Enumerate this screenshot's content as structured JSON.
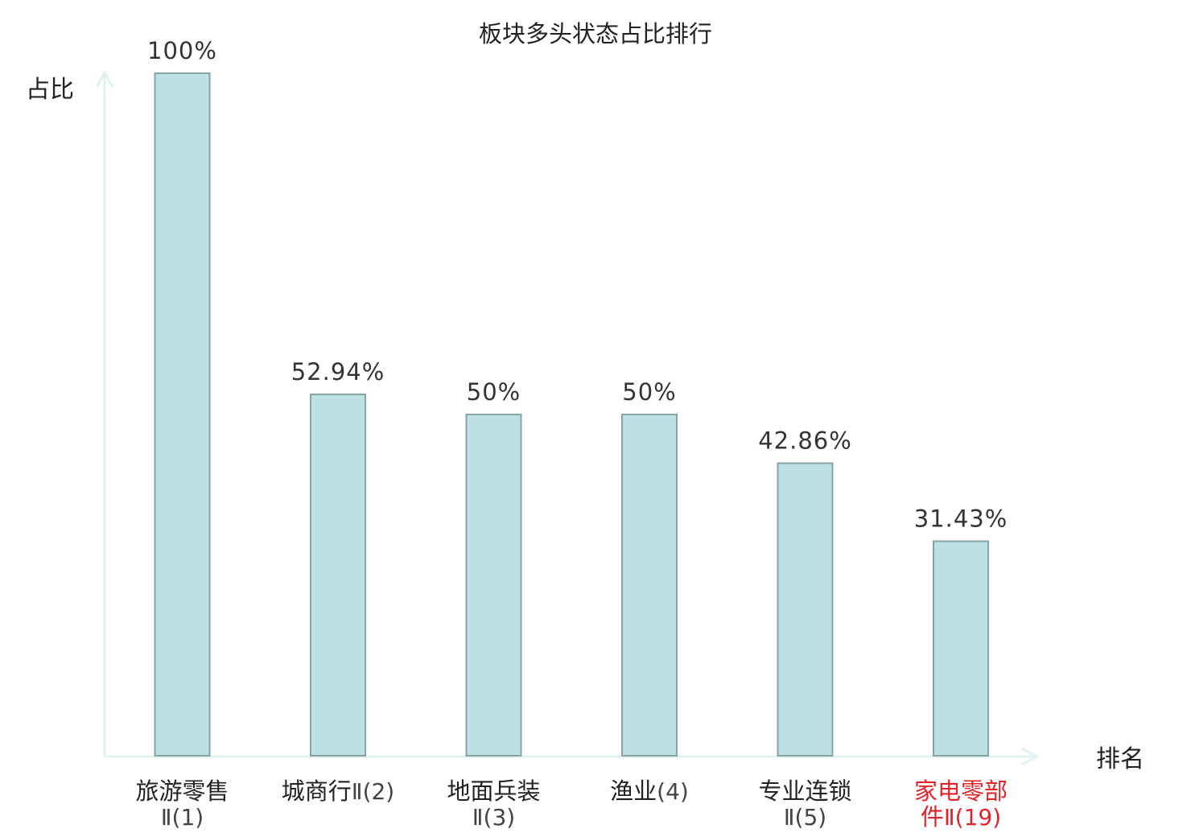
{
  "chart_data": {
    "type": "bar",
    "title": "板块多头状态占比排行",
    "ylabel": "占比",
    "xlabel": "排名",
    "ylim": [
      0,
      100
    ],
    "grid": false,
    "legend": "none",
    "categories": [
      {
        "lines": [
          [
            "旅游零售",
            ""
          ],
          [
            "",
            "Ⅱ(1)"
          ]
        ],
        "highlight": false
      },
      {
        "lines": [
          [
            "城商行",
            "Ⅱ(2)"
          ]
        ],
        "highlight": false
      },
      {
        "lines": [
          [
            "地面兵装",
            ""
          ],
          [
            "",
            "Ⅱ(3)"
          ]
        ],
        "highlight": false
      },
      {
        "lines": [
          [
            "渔业",
            "(4)"
          ]
        ],
        "highlight": false
      },
      {
        "lines": [
          [
            "专业连锁",
            ""
          ],
          [
            "",
            "Ⅱ(5)"
          ]
        ],
        "highlight": false
      },
      {
        "lines": [
          [
            "家电零部",
            ""
          ],
          [
            "件",
            "Ⅱ(19)"
          ]
        ],
        "highlight": true
      }
    ],
    "values": [
      100,
      52.94,
      50,
      50,
      42.86,
      31.43
    ],
    "value_labels": [
      "100%",
      "52.94%",
      "50%",
      "50%",
      "42.86%",
      "31.43%"
    ]
  },
  "colors": {
    "bar_fill": "#bde0e3",
    "bar_stroke": "#86a3a6",
    "axis": "#e0f2ef",
    "text": "#222222",
    "suffix_text": "#444444",
    "highlight": "#e0242a"
  }
}
